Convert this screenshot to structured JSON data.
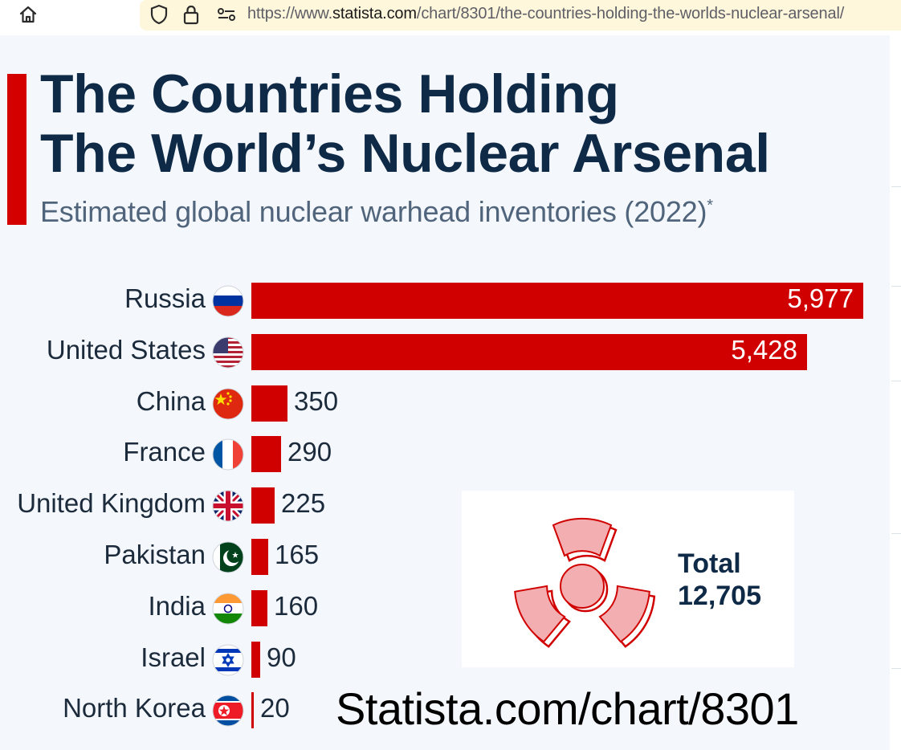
{
  "browser": {
    "url_prefix": "https://www.",
    "url_domain": "statista.com",
    "url_path": "/chart/8301/the-countries-holding-the-worlds-nuclear-arsenal/"
  },
  "chart_data": {
    "type": "bar",
    "orientation": "horizontal",
    "title_line1": "The Countries Holding",
    "title_line2": "The World’s Nuclear Arsenal",
    "subtitle": "Estimated global nuclear warhead inventories (2022)",
    "subtitle_mark": "*",
    "categories": [
      "Russia",
      "United States",
      "China",
      "France",
      "United Kingdom",
      "Pakistan",
      "India",
      "Israel",
      "North Korea"
    ],
    "values": [
      5977,
      5428,
      350,
      290,
      225,
      165,
      160,
      90,
      20
    ],
    "value_labels": [
      "5,977",
      "5,428",
      "350",
      "290",
      "225",
      "165",
      "160",
      "90",
      "20"
    ],
    "total_label": "Total",
    "total_value": "12,705",
    "bar_color": "#d10000"
  },
  "source_text": "Statista.com/chart/8301",
  "colors": {
    "title": "#0e2a47",
    "accent": "#d40000",
    "background": "#f4f7fb"
  }
}
